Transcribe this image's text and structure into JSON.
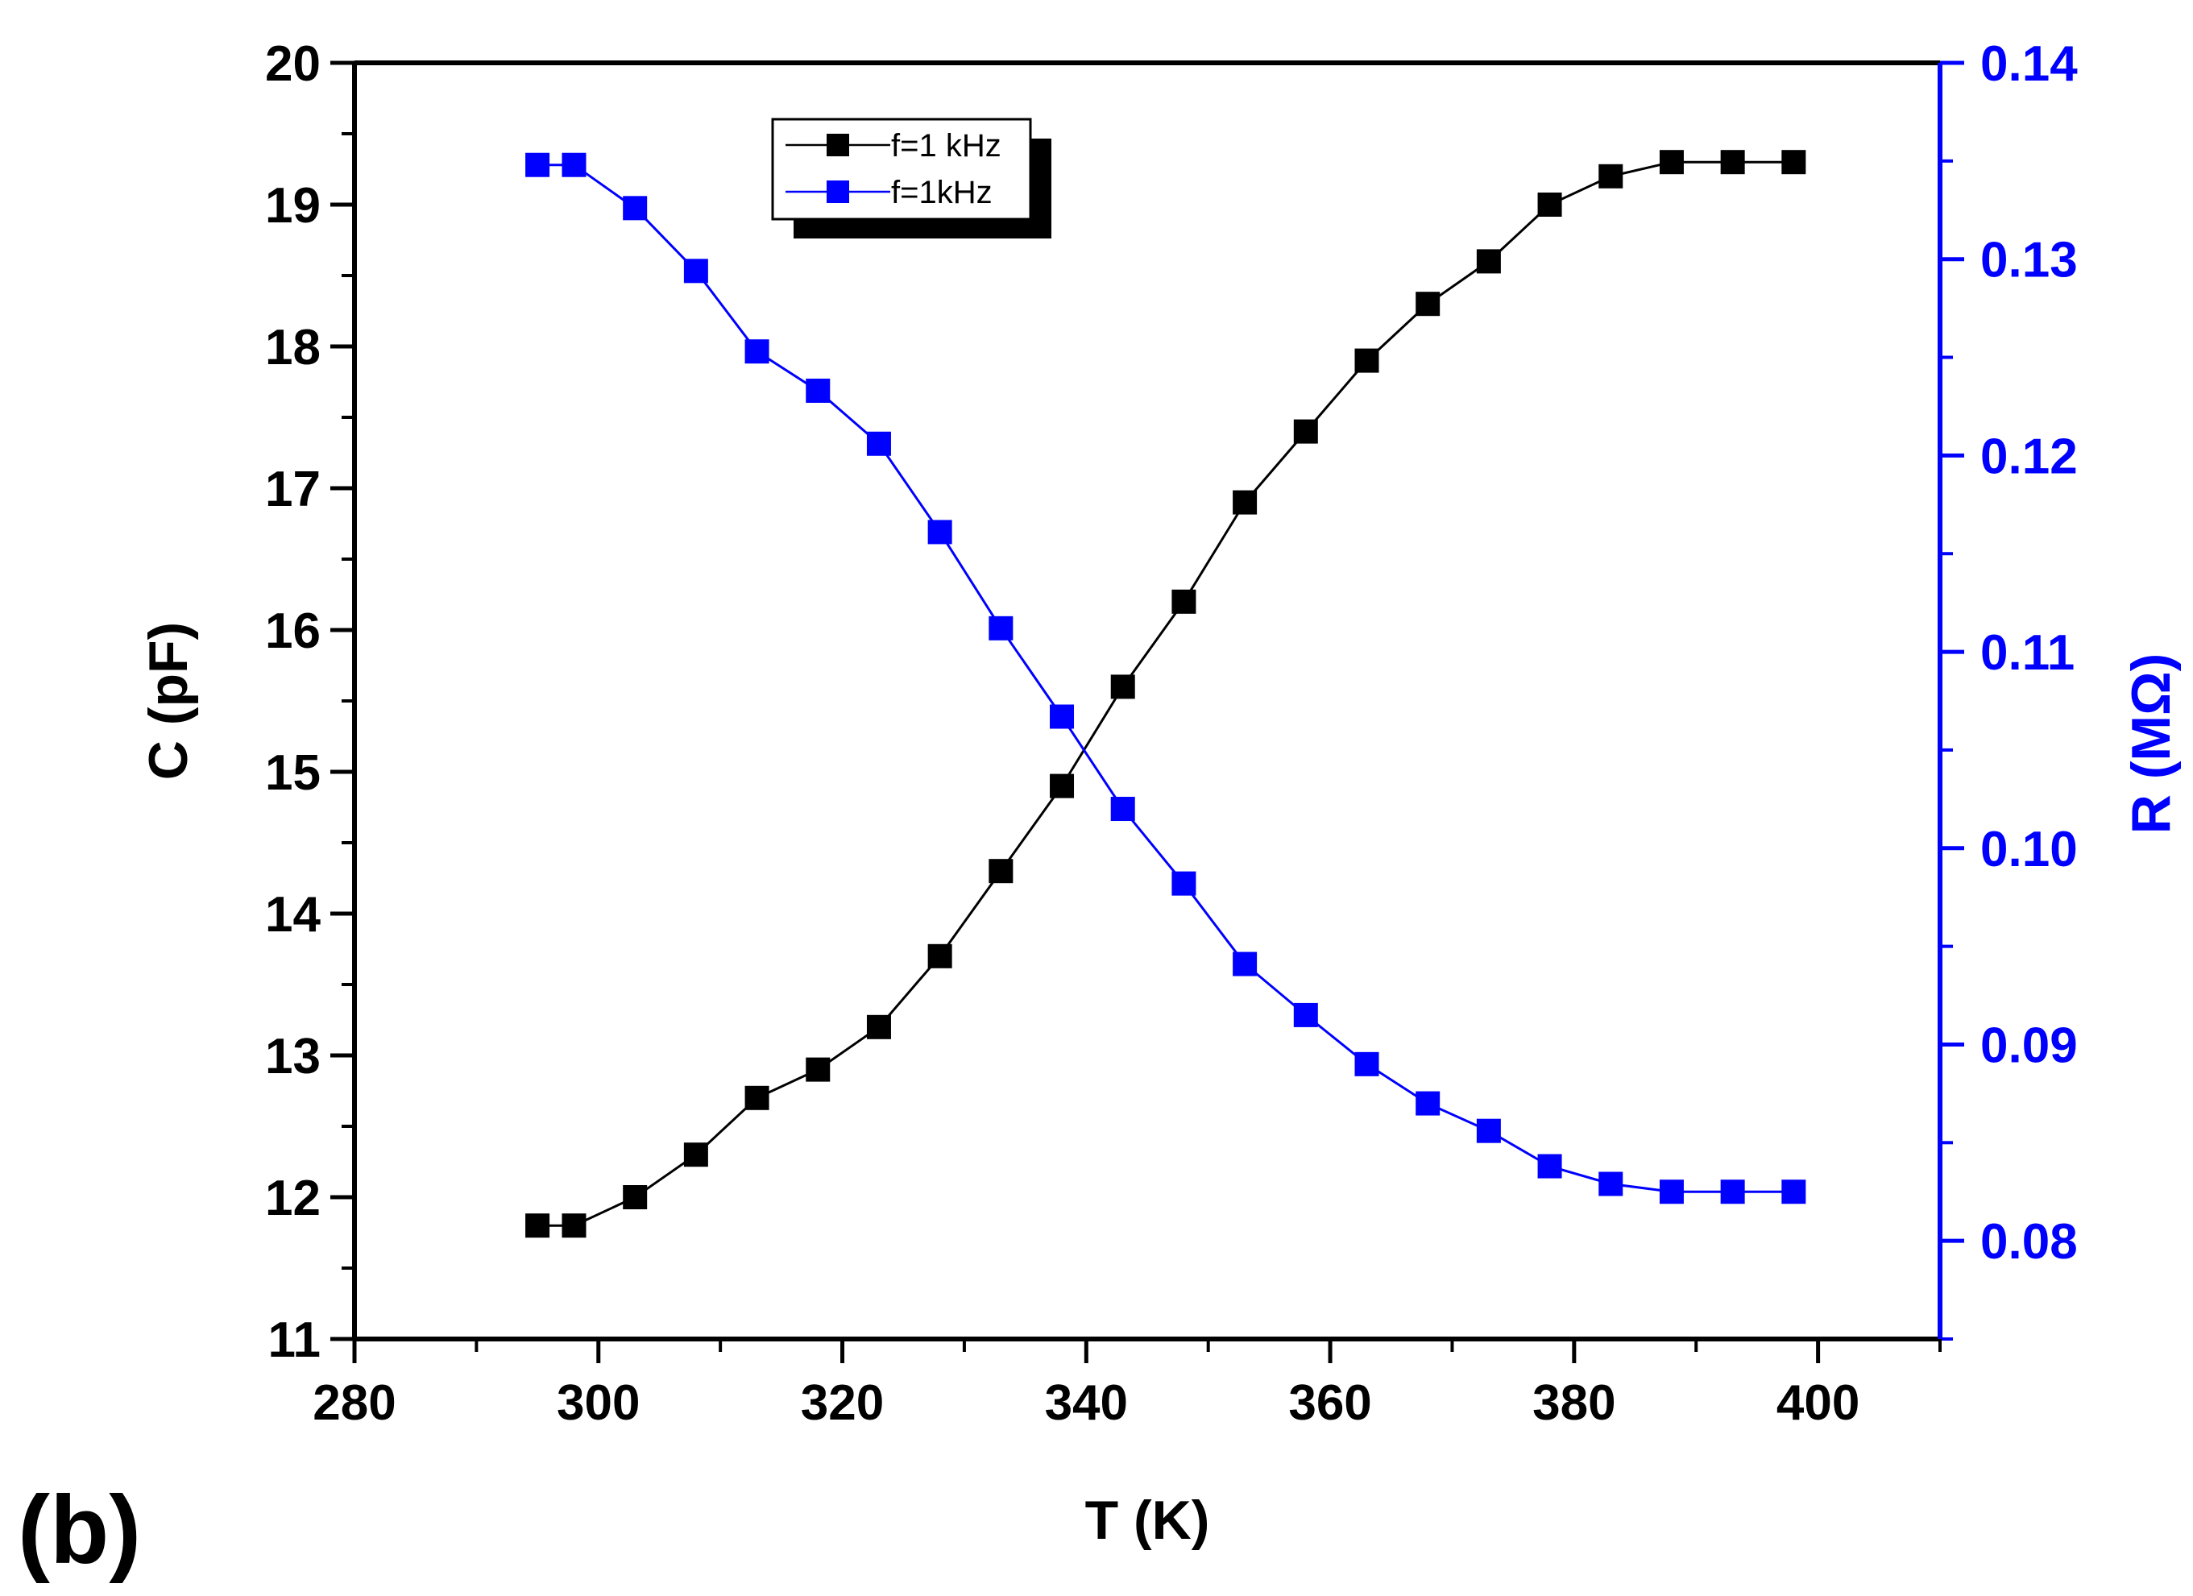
{
  "chart_data": {
    "type": "line",
    "panel_label": "(b)",
    "xlabel": "T (K)",
    "xlim": [
      280,
      410
    ],
    "x_ticks": [
      280,
      300,
      320,
      340,
      360,
      380,
      400
    ],
    "ylabel_left": "C (pF)",
    "ylim_left": [
      11,
      20
    ],
    "y_ticks_left": [
      11,
      12,
      13,
      14,
      15,
      16,
      17,
      18,
      19,
      20
    ],
    "ylabel_right": "R (MΩ)",
    "ylim_right": [
      0.075,
      0.14
    ],
    "y_ticks_right": [
      "0.08",
      "0.09",
      "0.10",
      "0.11",
      "0.12",
      "0.13",
      "0.14"
    ],
    "grid": false,
    "legend_position": "top-left",
    "series": [
      {
        "name": "f=1 kHz",
        "axis": "left",
        "color": "#000000",
        "marker": "square",
        "x": [
          295,
          298,
          303,
          308,
          313,
          318,
          323,
          328,
          333,
          338,
          343,
          348,
          353,
          358,
          363,
          368,
          373,
          378,
          383,
          388,
          393,
          398
        ],
        "values": [
          11.8,
          11.8,
          12.0,
          12.3,
          12.7,
          12.9,
          13.2,
          13.7,
          14.3,
          14.9,
          15.6,
          16.2,
          16.9,
          17.4,
          17.9,
          18.3,
          18.6,
          19.0,
          19.2,
          19.3,
          19.3,
          19.3
        ]
      },
      {
        "name": "f=1kHz",
        "axis": "right",
        "color": "#0000ff",
        "marker": "square",
        "x": [
          295,
          298,
          303,
          308,
          313,
          318,
          323,
          328,
          333,
          338,
          343,
          348,
          353,
          358,
          363,
          368,
          373,
          378,
          383,
          388,
          393,
          398
        ],
        "values": [
          0.1348,
          0.1348,
          0.1326,
          0.1294,
          0.1253,
          0.1233,
          0.1206,
          0.1161,
          0.1112,
          0.1067,
          0.102,
          0.0982,
          0.0941,
          0.0915,
          0.089,
          0.087,
          0.0856,
          0.0838,
          0.0829,
          0.0825,
          0.0825,
          0.0825
        ]
      }
    ]
  }
}
